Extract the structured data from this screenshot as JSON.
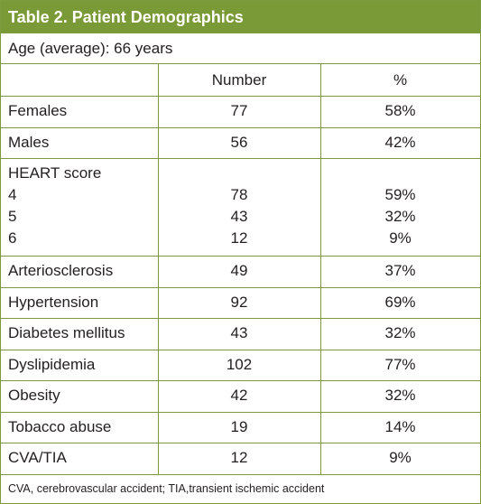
{
  "header": {
    "title": "Table 2. Patient Demographics"
  },
  "age": "Age (average): 66 years",
  "table": {
    "columns": [
      "Number",
      "%"
    ],
    "rows": [
      {
        "label": "Females",
        "number": "77",
        "percent": "58%"
      },
      {
        "label": "Males",
        "number": "56",
        "percent": "42%"
      },
      {
        "label": "HEART score",
        "subrows": [
          {
            "label": "4",
            "number": "78",
            "percent": "59%"
          },
          {
            "label": "5",
            "number": "43",
            "percent": "32%"
          },
          {
            "label": "6",
            "number": "12",
            "percent": "9%"
          }
        ]
      },
      {
        "label": "Arteriosclerosis",
        "number": "49",
        "percent": "37%"
      },
      {
        "label": "Hypertension",
        "number": "92",
        "percent": "69%"
      },
      {
        "label": "Diabetes mellitus",
        "number": "43",
        "percent": "32%"
      },
      {
        "label": "Dyslipidemia",
        "number": "102",
        "percent": "77%"
      },
      {
        "label": "Obesity",
        "number": "42",
        "percent": "32%"
      },
      {
        "label": "Tobacco abuse",
        "number": "19",
        "percent": "14%"
      },
      {
        "label": "CVA/TIA",
        "number": "12",
        "percent": "9%"
      }
    ]
  },
  "footnote": "CVA, cerebrovascular accident; TIA,transient ischemic accident"
}
